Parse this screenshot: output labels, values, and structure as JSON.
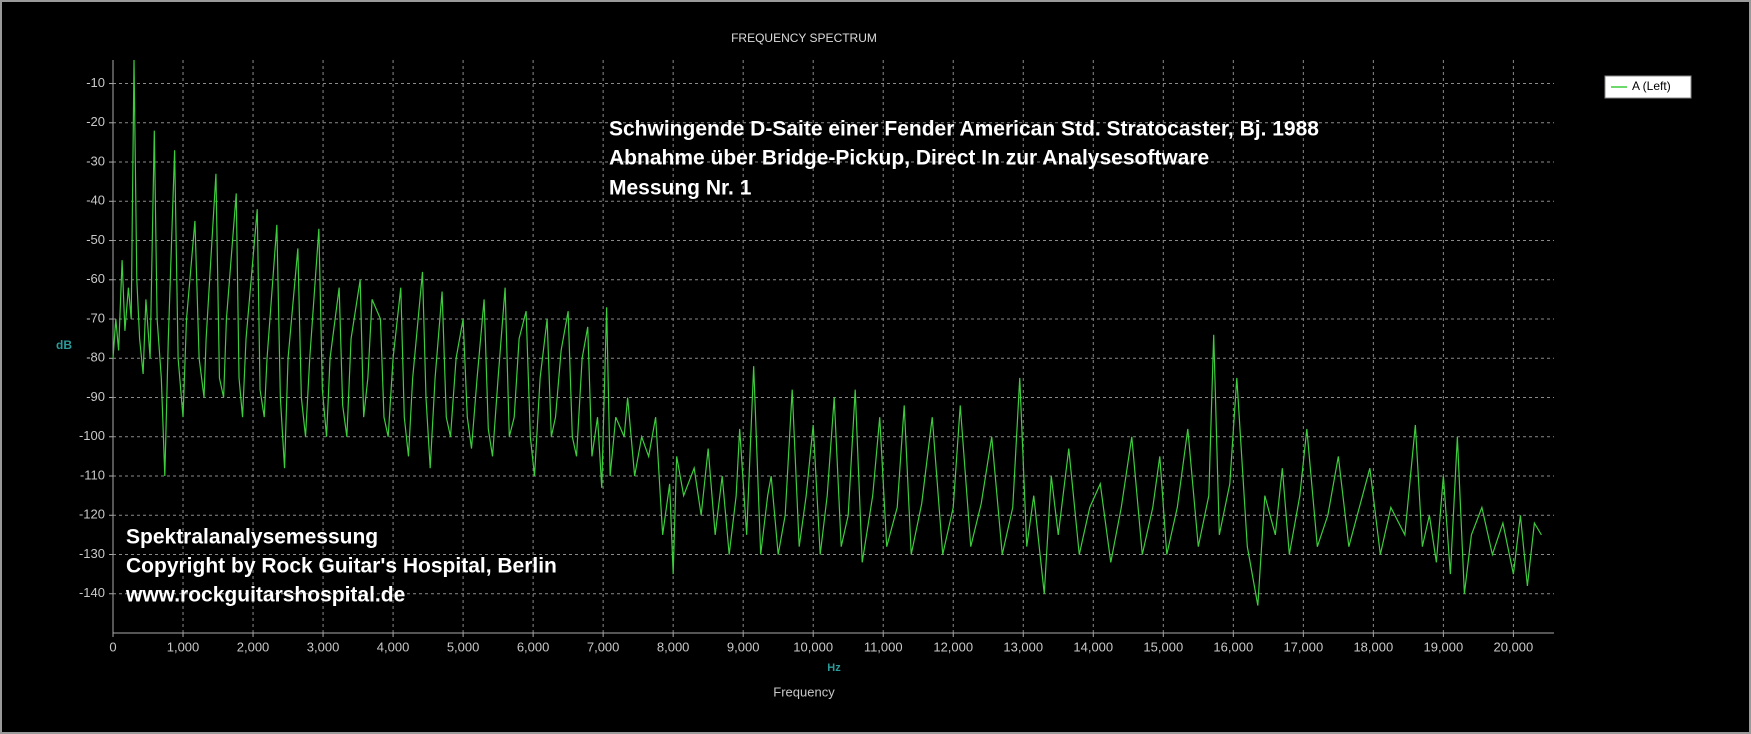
{
  "chart_data": {
    "type": "line",
    "title": "FREQUENCY SPECTRUM",
    "y_label": "dB",
    "x_unit": "Hz",
    "x_label": "Frequency",
    "annotations": [
      "Schwingende D-Saite einer Fender American Std. Stratocaster, Bj. 1988",
      "Abnahme über Bridge-Pickup, Direct In zur Analysesoftware",
      "Messung Nr. 1",
      "Spektralanalysemessung",
      "Copyright by Rock Guitar's Hospital, Berlin",
      "www.rockguitarshospital.de"
    ],
    "legend": "top-right",
    "grid": true,
    "xlim": [
      0,
      20580
    ],
    "ylim": [
      -150,
      -4
    ],
    "xticks": [
      0,
      {
        "value": 1000,
        "label": "1,000"
      },
      {
        "value": 2000,
        "label": "2,000"
      },
      {
        "value": 3000,
        "label": "3,000"
      },
      {
        "value": 4000,
        "label": "4,000"
      },
      {
        "value": 5000,
        "label": "5,000"
      },
      {
        "value": 6000,
        "label": "6,000"
      },
      {
        "value": 7000,
        "label": "7,000"
      },
      {
        "value": 8000,
        "label": "8,000"
      },
      {
        "value": 9000,
        "label": "9,000"
      },
      {
        "value": 10000,
        "label": "10,000"
      },
      {
        "value": 11000,
        "label": "11,000"
      },
      {
        "value": 12000,
        "label": "12,000"
      },
      {
        "value": 13000,
        "label": "13,000"
      },
      {
        "value": 14000,
        "label": "14,000"
      },
      {
        "value": 15000,
        "label": "15,000"
      },
      {
        "value": 16000,
        "label": "16,000"
      },
      {
        "value": 17000,
        "label": "17,000"
      },
      {
        "value": 18000,
        "label": "18,000"
      },
      {
        "value": 19000,
        "label": "19,000"
      },
      {
        "value": 20000,
        "label": "20,000"
      }
    ],
    "yticks": [
      -10,
      -20,
      -30,
      -40,
      -50,
      -60,
      -70,
      -80,
      -90,
      -100,
      -110,
      -120,
      -130,
      -140
    ],
    "x": [
      0,
      40,
      80,
      130,
      170,
      220,
      260,
      300,
      340,
      380,
      430,
      470,
      530,
      590,
      630,
      690,
      740,
      790,
      880,
      930,
      1000,
      1050,
      1170,
      1230,
      1300,
      1330,
      1470,
      1520,
      1580,
      1620,
      1760,
      1800,
      1850,
      1900,
      2060,
      2100,
      2160,
      2200,
      2340,
      2390,
      2450,
      2500,
      2640,
      2690,
      2750,
      2810,
      2940,
      2990,
      3050,
      3100,
      3230,
      3280,
      3340,
      3400,
      3530,
      3580,
      3640,
      3700,
      3820,
      3870,
      3930,
      4000,
      4110,
      4160,
      4220,
      4280,
      4420,
      4470,
      4530,
      4600,
      4700,
      4760,
      4820,
      4900,
      5000,
      5060,
      5120,
      5200,
      5300,
      5360,
      5420,
      5500,
      5600,
      5660,
      5730,
      5800,
      5900,
      5960,
      6020,
      6100,
      6200,
      6260,
      6320,
      6400,
      6500,
      6560,
      6620,
      6700,
      6780,
      6840,
      6920,
      6980,
      7050,
      7100,
      7180,
      7300,
      7350,
      7450,
      7550,
      7650,
      7750,
      7850,
      7950,
      8000,
      8050,
      8150,
      8300,
      8400,
      8500,
      8600,
      8700,
      8800,
      8900,
      8950,
      9050,
      9150,
      9250,
      9350,
      9400,
      9500,
      9600,
      9700,
      9800,
      9900,
      10000,
      10100,
      10200,
      10300,
      10400,
      10500,
      10600,
      10700,
      10850,
      10950,
      11050,
      11200,
      11300,
      11400,
      11550,
      11700,
      11850,
      12000,
      12100,
      12250,
      12400,
      12550,
      12700,
      12850,
      12950,
      13050,
      13150,
      13300,
      13400,
      13500,
      13650,
      13800,
      13950,
      14100,
      14250,
      14400,
      14550,
      14700,
      14850,
      14950,
      15050,
      15200,
      15350,
      15500,
      15650,
      15720,
      15800,
      15950,
      16050,
      16200,
      16350,
      16450,
      16600,
      16700,
      16800,
      16950,
      17050,
      17200,
      17350,
      17500,
      17650,
      17800,
      17950,
      18100,
      18250,
      18450,
      18600,
      18700,
      18800,
      18900,
      19000,
      19100,
      19200,
      19300,
      19400,
      19550,
      19700,
      19850,
      20000,
      20100,
      20200,
      20300,
      20400
    ],
    "series": [
      {
        "name": "A (Left)",
        "color": "#3ccc3c",
        "values": [
          -80,
          -70,
          -78,
          -55,
          -73,
          -62,
          -70,
          -4,
          -60,
          -75,
          -84,
          -65,
          -80,
          -22,
          -70,
          -85,
          -110,
          -75,
          -27,
          -80,
          -95,
          -70,
          -45,
          -80,
          -90,
          -75,
          -33,
          -85,
          -90,
          -70,
          -38,
          -85,
          -95,
          -75,
          -42,
          -88,
          -95,
          -80,
          -46,
          -90,
          -108,
          -80,
          -52,
          -90,
          -100,
          -80,
          -47,
          -88,
          -100,
          -80,
          -62,
          -92,
          -100,
          -75,
          -60,
          -95,
          -85,
          -65,
          -70,
          -95,
          -100,
          -80,
          -62,
          -95,
          -105,
          -85,
          -58,
          -90,
          -108,
          -85,
          -63,
          -95,
          -100,
          -80,
          -70,
          -95,
          -103,
          -85,
          -65,
          -98,
          -105,
          -85,
          -62,
          -100,
          -95,
          -75,
          -68,
          -100,
          -110,
          -85,
          -70,
          -100,
          -95,
          -78,
          -68,
          -100,
          -105,
          -80,
          -72,
          -105,
          -95,
          -113,
          -67,
          -110,
          -95,
          -100,
          -90,
          -110,
          -100,
          -105,
          -95,
          -125,
          -112,
          -135,
          -105,
          -115,
          -108,
          -120,
          -103,
          -125,
          -110,
          -130,
          -115,
          -98,
          -125,
          -82,
          -130,
          -115,
          -110,
          -130,
          -120,
          -88,
          -128,
          -115,
          -97,
          -130,
          -115,
          -90,
          -128,
          -120,
          -88,
          -132,
          -115,
          -95,
          -128,
          -118,
          -92,
          -130,
          -117,
          -95,
          -130,
          -118,
          -92,
          -128,
          -117,
          -100,
          -130,
          -118,
          -85,
          -128,
          -115,
          -140,
          -110,
          -125,
          -103,
          -130,
          -118,
          -112,
          -132,
          -118,
          -100,
          -130,
          -118,
          -105,
          -130,
          -118,
          -98,
          -128,
          -115,
          -74,
          -125,
          -112,
          -85,
          -128,
          -143,
          -115,
          -125,
          -108,
          -130,
          -115,
          -98,
          -128,
          -120,
          -105,
          -128,
          -118,
          -108,
          -130,
          -118,
          -125,
          -97,
          -128,
          -120,
          -132,
          -110,
          -135,
          -100,
          -140,
          -125,
          -118,
          -130,
          -122,
          -135,
          -120,
          -138,
          -122,
          -125
        ]
      }
    ]
  }
}
